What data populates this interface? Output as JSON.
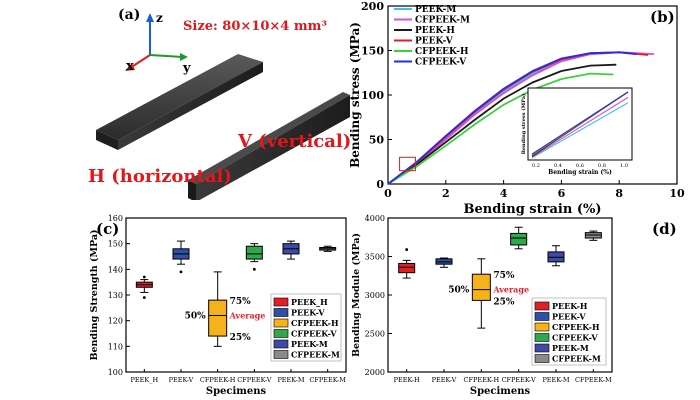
{
  "panel_a": {
    "label": "(a)",
    "size_text": "Size: 80×10×4 mm³",
    "axis_z": "z",
    "axis_x": "x",
    "axis_y": "y",
    "label_h": "H (horizontal)",
    "label_v": "V (vertical)",
    "accent_red": "#e4161b",
    "axis_colors": {
      "z": "#1a5fd0",
      "x": "#d8231f",
      "y": "#1c9a2a"
    }
  },
  "chart_data": [
    {
      "panel": "(b)",
      "type": "line",
      "xlabel": "Bending strain (%)",
      "ylabel": "Bending stress (MPa)",
      "xlim": [
        0,
        10
      ],
      "ylim": [
        0,
        200
      ],
      "xticks": [
        0,
        2,
        4,
        6,
        8,
        10
      ],
      "yticks": [
        0,
        50,
        100,
        150,
        200
      ],
      "legend_position": "top-left",
      "series": [
        {
          "name": "PEEK-M",
          "color": "#39c6e6",
          "x": [
            0,
            1,
            2,
            3,
            4,
            5,
            6,
            7,
            8,
            9
          ],
          "y": [
            0,
            24,
            52,
            80,
            104,
            124,
            138,
            146,
            148,
            146
          ]
        },
        {
          "name": "CFPEEK-M",
          "color": "#d64fd6",
          "x": [
            0,
            1,
            2,
            3,
            4,
            5,
            6,
            7,
            8,
            9.2
          ],
          "y": [
            0,
            23,
            50,
            78,
            102,
            122,
            138,
            146,
            148,
            146
          ]
        },
        {
          "name": "PEEK-H",
          "color": "#1a1a1a",
          "x": [
            0,
            1,
            2,
            3,
            4,
            5,
            6,
            7,
            7.9
          ],
          "y": [
            0,
            22,
            47,
            72,
            96,
            114,
            127,
            133,
            134
          ]
        },
        {
          "name": "PEEK-V",
          "color": "#e21e26",
          "x": [
            0,
            1,
            2,
            3,
            4,
            5,
            6,
            7,
            8,
            9
          ],
          "y": [
            0,
            24,
            53,
            81,
            106,
            126,
            140,
            147,
            148,
            145
          ]
        },
        {
          "name": "CFPEEK-H",
          "color": "#3ad13a",
          "x": [
            0,
            1,
            2,
            3,
            4,
            5,
            6,
            7,
            7.8
          ],
          "y": [
            0,
            20,
            43,
            67,
            89,
            106,
            118,
            124,
            123
          ]
        },
        {
          "name": "CFPEEK-V",
          "color": "#2a2ae6",
          "x": [
            0,
            1,
            2,
            3,
            4,
            5,
            6,
            7,
            8,
            8.6
          ],
          "y": [
            0,
            25,
            54,
            82,
            107,
            127,
            141,
            147,
            148,
            146
          ]
        }
      ],
      "inset": {
        "xlabel": "Bending strain (%)",
        "ylabel": "Bending stress (MPa)",
        "xticks": [
          "0.2",
          "0.4",
          "0.6",
          "0.8",
          "1.0"
        ]
      }
    },
    {
      "panel": "(c)",
      "type": "box",
      "xlabel": "Specimens",
      "ylabel": "Bending Strength (MPa)",
      "ylim": [
        100,
        160
      ],
      "yticks": [
        100,
        110,
        120,
        130,
        140,
        150,
        160
      ],
      "categories": [
        "PEEK_H",
        "PEEK-V",
        "CFPEEK-H",
        "CFPEEK-V",
        "PEEK-M",
        "CFPEEK-M"
      ],
      "boxes": [
        {
          "name": "PEEK_H",
          "color": "#e21e26",
          "min": 131,
          "q1": 133,
          "median": 134,
          "q3": 135,
          "max": 136,
          "outliers": [
            129,
            137
          ]
        },
        {
          "name": "PEEK-V",
          "color": "#2f4fa8",
          "min": 142,
          "q1": 144,
          "median": 146,
          "q3": 148,
          "max": 151,
          "outliers": [
            139
          ]
        },
        {
          "name": "CFPEEK-H",
          "color": "#f5b21b",
          "min": 110,
          "q1": 114,
          "median": 122,
          "q3": 128,
          "max": 139,
          "outliers": []
        },
        {
          "name": "CFPEEK-V",
          "color": "#2ea84a",
          "min": 143,
          "q1": 144,
          "median": 146,
          "q3": 149,
          "max": 150,
          "outliers": [
            140
          ]
        },
        {
          "name": "PEEK-M",
          "color": "#3f4aa6",
          "min": 144,
          "q1": 146,
          "median": 148,
          "q3": 150,
          "max": 151,
          "outliers": []
        },
        {
          "name": "CFPEEK-M",
          "color": "#8a8a8a",
          "min": 147,
          "q1": 147.5,
          "median": 148,
          "q3": 148.5,
          "max": 149,
          "outliers": []
        }
      ],
      "legend": [
        "PEEK_H",
        "PEEK-V",
        "CFPEEK-H",
        "CFPEEK-V",
        "PEEK-M",
        "CFPEEK-M"
      ],
      "annotations": {
        "upper": "75%",
        "lower": "25%",
        "median": "50%",
        "mean": "Average"
      }
    },
    {
      "panel": "(d)",
      "type": "box",
      "xlabel": "Specimens",
      "ylabel": "Bending Module (MPa)",
      "ylim": [
        2000,
        4000
      ],
      "yticks": [
        2000,
        2500,
        3000,
        3500,
        4000
      ],
      "categories": [
        "PEEK-H",
        "PEEK-V",
        "CFPEEK-H",
        "CFPEEK-V",
        "PEEK-M",
        "CFPEEK-M"
      ],
      "boxes": [
        {
          "name": "PEEK-H",
          "color": "#e21e26",
          "min": 3220,
          "q1": 3290,
          "median": 3360,
          "q3": 3410,
          "max": 3450,
          "outliers": [
            3590
          ]
        },
        {
          "name": "PEEK-V",
          "color": "#2f4fa8",
          "min": 3360,
          "q1": 3400,
          "median": 3430,
          "q3": 3470,
          "max": 3480,
          "outliers": []
        },
        {
          "name": "CFPEEK-H",
          "color": "#f5b21b",
          "min": 2570,
          "q1": 2930,
          "median": 3070,
          "q3": 3270,
          "max": 3470,
          "outliers": []
        },
        {
          "name": "CFPEEK-V",
          "color": "#2ea84a",
          "min": 3600,
          "q1": 3650,
          "median": 3740,
          "q3": 3800,
          "max": 3880,
          "outliers": []
        },
        {
          "name": "PEEK-M",
          "color": "#3f4aa6",
          "min": 3380,
          "q1": 3430,
          "median": 3490,
          "q3": 3560,
          "max": 3640,
          "outliers": []
        },
        {
          "name": "CFPEEK-M",
          "color": "#8a8a8a",
          "min": 3710,
          "q1": 3740,
          "median": 3780,
          "q3": 3810,
          "max": 3830,
          "outliers": []
        }
      ],
      "legend": [
        "PEEK-H",
        "PEEK-V",
        "CFPEEK-H",
        "CFPEEK-V",
        "PEEK-M",
        "CFPEEK-M"
      ],
      "annotations": {
        "upper": "75%",
        "lower": "25%",
        "median": "50%",
        "mean": "Average"
      }
    }
  ]
}
